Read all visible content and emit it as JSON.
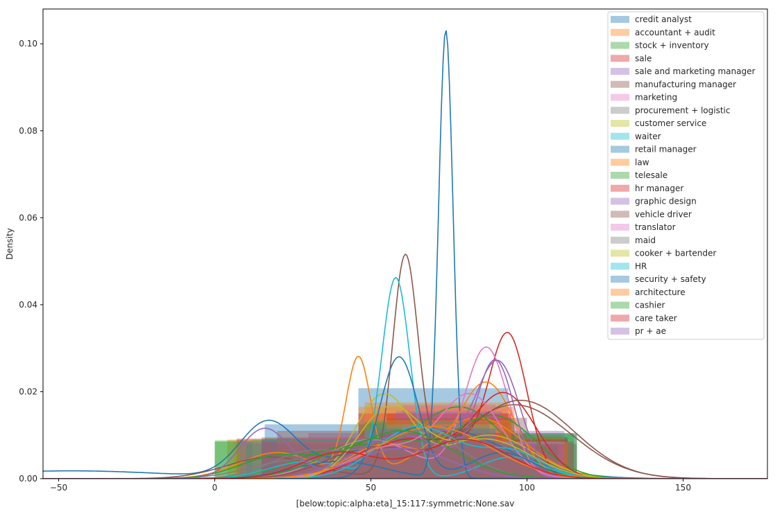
{
  "chart_data": {
    "type": "area",
    "title": "",
    "xlabel": "[below:topic:alpha:eta]_15:117:symmetric:None.sav",
    "ylabel": "Density",
    "xlim": [
      -55,
      177
    ],
    "ylim": [
      0,
      0.108
    ],
    "xticks": [
      -50,
      0,
      50,
      100,
      150
    ],
    "xtick_labels": [
      "−50",
      "0",
      "50",
      "100",
      "150"
    ],
    "yticks": [
      0,
      0.02,
      0.04,
      0.06,
      0.08,
      0.1
    ],
    "ytick_labels": [
      "0.00",
      "0.02",
      "0.04",
      "0.06",
      "0.08",
      "0.10"
    ],
    "grid": false,
    "legend_position": "top-right",
    "palette": [
      "#1f77b4",
      "#ff7f0e",
      "#2ca02c",
      "#d62728",
      "#9467bd",
      "#8c564b",
      "#e377c2",
      "#7f7f7f",
      "#bcbd22",
      "#17becf"
    ],
    "series": [
      {
        "name": "credit analyst",
        "color": "#1f77b4",
        "bins": [
          [
            16,
            46,
            0.0125
          ],
          [
            46,
            94,
            0.0208
          ],
          [
            94,
            116,
            0.0105
          ]
        ],
        "kde": [
          [
            0.0125,
            17,
            9
          ],
          [
            0.012,
            70,
            22
          ],
          [
            0.0018,
            -46,
            32
          ]
        ]
      },
      {
        "name": "accountant + audit",
        "color": "#ff7f0e",
        "bins": [
          [
            4,
            46,
            0.009
          ],
          [
            46,
            96,
            0.0165
          ],
          [
            96,
            111,
            0.01
          ]
        ],
        "kde": [
          [
            0.027,
            46,
            4
          ],
          [
            0.014,
            84,
            15
          ],
          [
            0.006,
            20,
            12
          ]
        ]
      },
      {
        "name": "stock + inventory",
        "color": "#2ca02c",
        "bins": [
          [
            0,
            46,
            0.0088
          ],
          [
            46,
            94,
            0.0125
          ],
          [
            94,
            115,
            0.0105
          ]
        ],
        "kde": [
          [
            0.016,
            79,
            14
          ],
          [
            0.007,
            42,
            16
          ]
        ]
      },
      {
        "name": "sale",
        "color": "#d62728",
        "bins": [
          [
            7,
            46,
            0.0092
          ],
          [
            46,
            94,
            0.015
          ],
          [
            94,
            113,
            0.0095
          ]
        ],
        "kde": [
          [
            0.031,
            94,
            6
          ],
          [
            0.012,
            66,
            16
          ]
        ]
      },
      {
        "name": "sale and marketing manager",
        "color": "#9467bd",
        "bins": [
          [
            30,
            60,
            0.0105
          ],
          [
            60,
            90,
            0.017
          ],
          [
            90,
            112,
            0.011
          ]
        ],
        "kde": [
          [
            0.025,
            91,
            7
          ],
          [
            0.012,
            65,
            14
          ]
        ]
      },
      {
        "name": "manufacturing manager",
        "color": "#8c564b",
        "bins": [
          [
            20,
            60,
            0.011
          ],
          [
            60,
            100,
            0.014
          ],
          [
            100,
            116,
            0.008
          ]
        ],
        "kde": [
          [
            0.049,
            61,
            4
          ],
          [
            0.017,
            96,
            18
          ],
          [
            0.005,
            18,
            14
          ]
        ]
      },
      {
        "name": "marketing",
        "color": "#e377c2",
        "bins": [
          [
            24,
            60,
            0.0095
          ],
          [
            60,
            95,
            0.0165
          ],
          [
            95,
            115,
            0.008
          ]
        ],
        "kde": [
          [
            0.03,
            87,
            7
          ],
          [
            0.009,
            50,
            14
          ]
        ]
      },
      {
        "name": "procurement + logistic",
        "color": "#7f7f7f",
        "bins": [
          [
            18,
            55,
            0.0085
          ],
          [
            55,
            90,
            0.0115
          ],
          [
            90,
            112,
            0.0085
          ]
        ],
        "kde": [
          [
            0.013,
            74,
            18
          ],
          [
            0.004,
            25,
            14
          ]
        ]
      },
      {
        "name": "customer service",
        "color": "#bcbd22",
        "bins": [
          [
            10,
            50,
            0.009
          ],
          [
            50,
            90,
            0.0135
          ],
          [
            90,
            110,
            0.007
          ]
        ],
        "kde": [
          [
            0.019,
            54,
            9
          ],
          [
            0.01,
            88,
            14
          ]
        ]
      },
      {
        "name": "waiter",
        "color": "#17becf",
        "bins": [
          [
            10,
            48,
            0.0075
          ],
          [
            48,
            75,
            0.012
          ],
          [
            75,
            110,
            0.006
          ]
        ],
        "kde": [
          [
            0.046,
            58,
            4.5
          ],
          [
            0.005,
            95,
            10
          ],
          [
            0.004,
            30,
            12
          ]
        ]
      },
      {
        "name": "retail manager",
        "color": "#1f77b4",
        "bins": [
          [
            12,
            50,
            0.009
          ],
          [
            50,
            90,
            0.0135
          ],
          [
            90,
            113,
            0.0095
          ]
        ],
        "kde": [
          [
            0.103,
            74,
            2.3
          ],
          [
            0.004,
            40,
            14
          ]
        ]
      },
      {
        "name": "law",
        "color": "#ff7f0e",
        "bins": [
          [
            6,
            48,
            0.0085
          ],
          [
            48,
            94,
            0.0175
          ],
          [
            94,
            112,
            0.0095
          ]
        ],
        "kde": [
          [
            0.022,
            87,
            9
          ],
          [
            0.008,
            55,
            12
          ]
        ]
      },
      {
        "name": "telesale",
        "color": "#2ca02c",
        "bins": [
          [
            0,
            48,
            0.0085
          ],
          [
            48,
            95,
            0.013
          ],
          [
            95,
            116,
            0.0102
          ]
        ],
        "kde": [
          [
            0.014,
            90,
            13
          ],
          [
            0.009,
            52,
            16
          ]
        ]
      },
      {
        "name": "hr manager",
        "color": "#d62728",
        "bins": [
          [
            20,
            55,
            0.0085
          ],
          [
            55,
            95,
            0.015
          ],
          [
            95,
            113,
            0.009
          ]
        ],
        "kde": [
          [
            0.019,
            93,
            10
          ],
          [
            0.009,
            62,
            14
          ]
        ]
      },
      {
        "name": "graphic design",
        "color": "#9467bd",
        "bins": [
          [
            22,
            58,
            0.009
          ],
          [
            58,
            92,
            0.0155
          ],
          [
            92,
            110,
            0.0085
          ]
        ],
        "kde": [
          [
            0.026,
            90,
            6
          ],
          [
            0.01,
            60,
            15
          ]
        ]
      },
      {
        "name": "vehicle driver",
        "color": "#8c564b",
        "bins": [
          [
            15,
            55,
            0.0095
          ],
          [
            55,
            96,
            0.0138
          ],
          [
            96,
            115,
            0.0085
          ]
        ],
        "kde": [
          [
            0.018,
            98,
            17
          ],
          [
            0.007,
            50,
            14
          ]
        ]
      },
      {
        "name": "translator",
        "color": "#e377c2",
        "bins": [
          [
            25,
            60,
            0.0085
          ],
          [
            60,
            92,
            0.0125
          ],
          [
            92,
            112,
            0.0085
          ]
        ],
        "kde": [
          [
            0.019,
            82,
            10
          ],
          [
            0.007,
            55,
            12
          ]
        ]
      },
      {
        "name": "maid",
        "color": "#7f7f7f",
        "bins": [
          [
            10,
            50,
            0.0085
          ],
          [
            50,
            90,
            0.0105
          ],
          [
            90,
            110,
            0.007
          ]
        ],
        "kde": [
          [
            0.011,
            65,
            14
          ],
          [
            0.006,
            30,
            12
          ]
        ]
      },
      {
        "name": "cooker + bartender",
        "color": "#bcbd22",
        "bins": [
          [
            12,
            52,
            0.009
          ],
          [
            52,
            90,
            0.0125
          ],
          [
            90,
            110,
            0.0075
          ]
        ],
        "kde": [
          [
            0.016,
            56,
            10
          ],
          [
            0.009,
            87,
            14
          ]
        ]
      },
      {
        "name": "HR",
        "color": "#17becf",
        "bins": [
          [
            18,
            55,
            0.0085
          ],
          [
            55,
            90,
            0.012
          ],
          [
            90,
            112,
            0.0085
          ]
        ],
        "kde": [
          [
            0.012,
            65,
            13
          ],
          [
            0.006,
            95,
            10
          ]
        ]
      },
      {
        "name": "security + safety",
        "color": "#1f77b4",
        "bins": [
          [
            15,
            50,
            0.009
          ],
          [
            50,
            88,
            0.0125
          ],
          [
            88,
            110,
            0.008
          ]
        ],
        "kde": [
          [
            0.028,
            59,
            6
          ],
          [
            0.006,
            92,
            10
          ]
        ]
      },
      {
        "name": "architecture",
        "color": "#ff7f0e",
        "bins": [
          [
            20,
            55,
            0.0085
          ],
          [
            55,
            95,
            0.0135
          ],
          [
            95,
            113,
            0.0085
          ]
        ],
        "kde": [
          [
            0.012,
            70,
            18
          ]
        ]
      },
      {
        "name": "cashier",
        "color": "#2ca02c",
        "bins": [
          [
            10,
            50,
            0.008
          ],
          [
            50,
            90,
            0.0115
          ],
          [
            90,
            110,
            0.0075
          ]
        ],
        "kde": [
          [
            0.011,
            60,
            16
          ],
          [
            0.005,
            20,
            12
          ]
        ]
      },
      {
        "name": "care taker",
        "color": "#d62728",
        "bins": [
          [
            15,
            52,
            0.0085
          ],
          [
            52,
            92,
            0.0105
          ],
          [
            92,
            112,
            0.008
          ]
        ],
        "kde": [
          [
            0.009,
            80,
            14
          ],
          [
            0.006,
            40,
            12
          ]
        ]
      },
      {
        "name": "pr + ae",
        "color": "#9467bd",
        "bins": [
          [
            8,
            48,
            0.0085
          ],
          [
            48,
            90,
            0.0115
          ],
          [
            90,
            112,
            0.0085
          ]
        ],
        "kde": [
          [
            0.0115,
            16,
            8
          ],
          [
            0.007,
            60,
            15
          ]
        ]
      }
    ]
  }
}
